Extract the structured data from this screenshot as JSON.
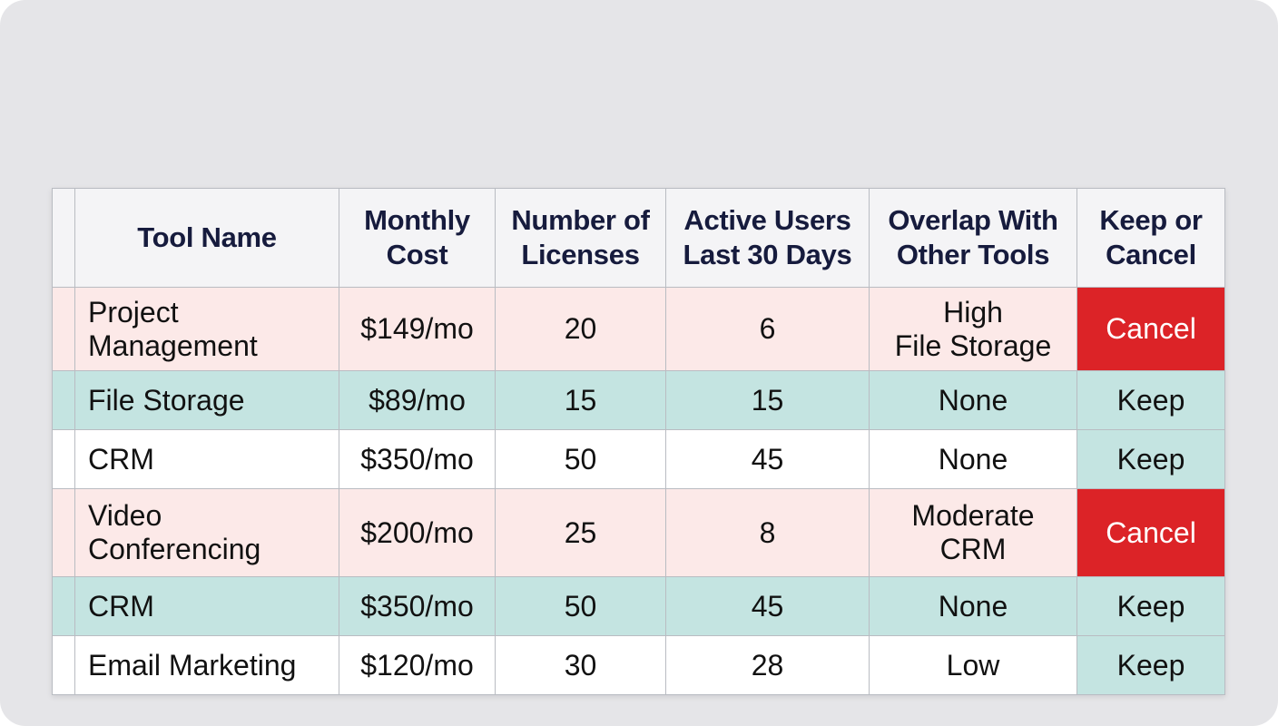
{
  "colors": {
    "cancel": "#dc2327",
    "keep": "#c4e4e1",
    "pink_row": "#fce9e8",
    "teal_row": "#c4e4e1",
    "header_text": "#161b3d"
  },
  "table": {
    "headers": [
      [
        "Tool Name"
      ],
      [
        "Monthly",
        "Cost"
      ],
      [
        "Number of",
        "Licenses"
      ],
      [
        "Active Users",
        "Last 30 Days"
      ],
      [
        "Overlap With",
        "Other Tools"
      ],
      [
        "Keep or",
        "Cancel"
      ]
    ],
    "rows": [
      {
        "tone": "pink",
        "tool": [
          "Project",
          "Management"
        ],
        "cost": "$149/mo",
        "licenses": "20",
        "active_users": "6",
        "overlap": [
          "High",
          "File Storage"
        ],
        "decision": "Cancel"
      },
      {
        "tone": "teal",
        "tool": [
          "File Storage"
        ],
        "cost": "$89/mo",
        "licenses": "15",
        "active_users": "15",
        "overlap": [
          "None"
        ],
        "decision": "Keep"
      },
      {
        "tone": "white",
        "tool": [
          "CRM"
        ],
        "cost": "$350/mo",
        "licenses": "50",
        "active_users": "45",
        "overlap": [
          "None"
        ],
        "decision": "Keep"
      },
      {
        "tone": "pink",
        "tool": [
          "Video",
          "Conferencing"
        ],
        "cost": "$200/mo",
        "licenses": "25",
        "active_users": "8",
        "overlap": [
          "Moderate",
          "CRM"
        ],
        "decision": "Cancel"
      },
      {
        "tone": "teal",
        "tool": [
          "CRM"
        ],
        "cost": "$350/mo",
        "licenses": "50",
        "active_users": "45",
        "overlap": [
          "None"
        ],
        "decision": "Keep"
      },
      {
        "tone": "white",
        "tool": [
          "Email Marketing"
        ],
        "cost": "$120/mo",
        "licenses": "30",
        "active_users": "28",
        "overlap": [
          "Low"
        ],
        "decision": "Keep"
      }
    ]
  }
}
